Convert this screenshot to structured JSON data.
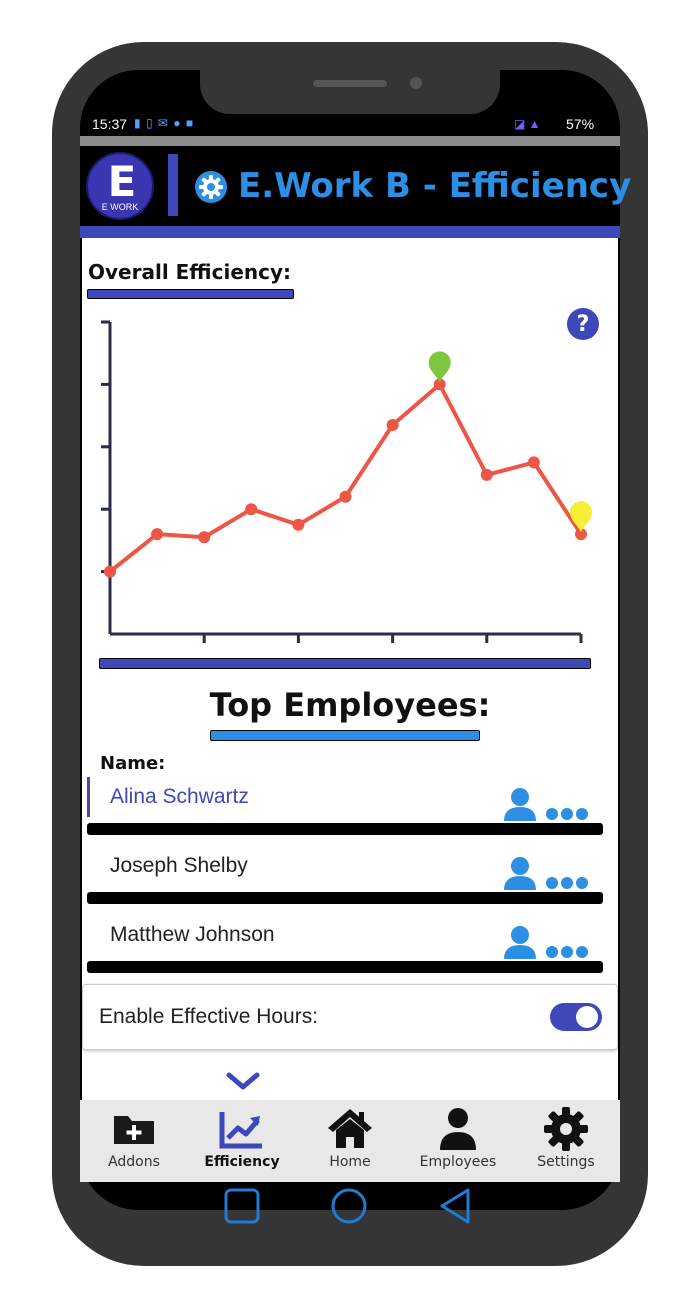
{
  "status_bar": {
    "time": "15:37",
    "left_icons": "▮ ▯ ✉ ● ■",
    "right_icons": "◪ ▲",
    "battery": "57%"
  },
  "header": {
    "logo_letter": "E",
    "logo_text": "E WORK",
    "title": "E.Work B - Efficiency"
  },
  "efficiency": {
    "title": "Overall Efficiency:"
  },
  "chart_data": {
    "type": "line",
    "title": "",
    "xlabel": "",
    "ylabel": "",
    "x": [
      0,
      1,
      2,
      3,
      4,
      5,
      6,
      7,
      8,
      9,
      10
    ],
    "values": [
      1.0,
      1.6,
      1.55,
      2.0,
      1.75,
      2.2,
      3.35,
      4.0,
      2.55,
      2.75,
      1.6
    ],
    "xlim": [
      0,
      10
    ],
    "ylim": [
      0,
      5
    ],
    "y_ticks": [
      1,
      2,
      3,
      4,
      5
    ],
    "x_ticks": [
      2,
      4,
      6,
      8,
      10
    ],
    "tick_labels": false,
    "grid": false,
    "line_color": "#ee5545",
    "marker_high_color": "#7fc63e",
    "marker_low_color": "#f7ee3a",
    "highlight_max_index": 7,
    "highlight_last_index": 10
  },
  "top_employees": {
    "title": "Top Employees:",
    "name_header": "Name:",
    "list": [
      {
        "name": "Alina Schwartz",
        "selected": true
      },
      {
        "name": "Joseph Shelby",
        "selected": false
      },
      {
        "name": "Matthew Johnson",
        "selected": false
      }
    ]
  },
  "settings": {
    "effective_hours_label": "Enable Effective Hours:",
    "effective_hours_enabled": true
  },
  "nav": {
    "items": [
      {
        "label": "Addons",
        "icon": "folder-plus-icon",
        "active": false
      },
      {
        "label": "Efficiency",
        "icon": "chart-line-icon",
        "active": true
      },
      {
        "label": "Home",
        "icon": "home-icon",
        "active": false
      },
      {
        "label": "Employees",
        "icon": "user-icon",
        "active": false
      },
      {
        "label": "Settings",
        "icon": "gear-icon",
        "active": false
      }
    ]
  },
  "colors": {
    "brand_blue": "#3f48b8",
    "accent_blue": "#2d8fe4",
    "system_button_blue": "#1f7bd8"
  }
}
